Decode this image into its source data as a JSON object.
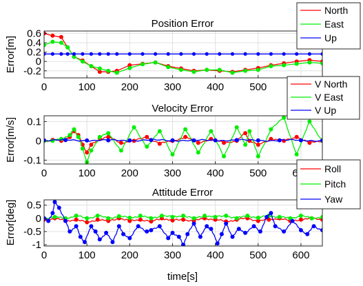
{
  "chart_data": [
    {
      "type": "line",
      "title": "Position Error",
      "ylabel": "Error[m]",
      "xlabel": "",
      "xlim": [
        0,
        650
      ],
      "ylim": [
        -0.35,
        0.65
      ],
      "xticks": [
        0,
        100,
        200,
        300,
        400,
        500
      ],
      "yticks": [
        -0.2,
        0,
        0.2,
        0.4,
        0.6
      ],
      "ytick_labels": [
        "-0.2",
        "0",
        "0.2",
        "0.4",
        "0.6"
      ],
      "grid": true,
      "legend_position": "top-right",
      "series": [
        {
          "name": "North",
          "color": "#ff0000",
          "x": [
            0,
            20,
            40,
            55,
            70,
            90,
            110,
            130,
            150,
            170,
            200,
            230,
            260,
            290,
            320,
            350,
            380,
            410,
            440,
            470,
            500,
            530,
            560,
            590,
            620,
            650
          ],
          "y": [
            0.6,
            0.55,
            0.52,
            0.3,
            0.1,
            0.02,
            -0.1,
            -0.22,
            -0.22,
            -0.2,
            -0.08,
            -0.05,
            -0.02,
            -0.1,
            -0.15,
            -0.2,
            -0.18,
            -0.2,
            -0.22,
            -0.18,
            -0.14,
            -0.08,
            -0.04,
            0.0,
            0.03,
            0.0
          ]
        },
        {
          "name": "East",
          "color": "#00ee00",
          "x": [
            0,
            20,
            40,
            55,
            70,
            90,
            110,
            130,
            150,
            170,
            200,
            230,
            260,
            290,
            320,
            350,
            380,
            410,
            440,
            470,
            500,
            530,
            560,
            590,
            620,
            650
          ],
          "y": [
            0.35,
            0.42,
            0.4,
            0.3,
            0.1,
            0.0,
            -0.1,
            -0.15,
            -0.2,
            -0.24,
            -0.14,
            -0.06,
            -0.02,
            -0.12,
            -0.18,
            -0.22,
            -0.18,
            -0.18,
            -0.24,
            -0.2,
            -0.18,
            -0.1,
            -0.08,
            -0.05,
            -0.02,
            -0.04
          ]
        },
        {
          "name": "Up",
          "color": "#0000ff",
          "x": [
            0,
            20,
            40,
            55,
            70,
            90,
            110,
            130,
            150,
            170,
            200,
            230,
            260,
            290,
            320,
            350,
            380,
            410,
            440,
            470,
            500,
            530,
            560,
            590,
            620,
            650
          ],
          "y": [
            0.16,
            0.16,
            0.16,
            0.16,
            0.16,
            0.16,
            0.16,
            0.16,
            0.16,
            0.16,
            0.16,
            0.16,
            0.16,
            0.16,
            0.16,
            0.16,
            0.16,
            0.16,
            0.16,
            0.16,
            0.16,
            0.16,
            0.16,
            0.16,
            0.16,
            0.16
          ]
        }
      ]
    },
    {
      "type": "line",
      "title": "Velocity Error",
      "ylabel": "Error[m/s]",
      "xlabel": "",
      "xlim": [
        0,
        650
      ],
      "ylim": [
        -0.12,
        0.13
      ],
      "xticks": [
        0,
        100,
        200,
        300,
        400,
        500,
        600
      ],
      "yticks": [
        -0.1,
        0,
        0.1
      ],
      "ytick_labels": [
        "-0.1",
        "0",
        "0.1"
      ],
      "grid": true,
      "legend_position": "top-right",
      "series": [
        {
          "name": "V North",
          "color": "#ff0000",
          "x": [
            0,
            20,
            40,
            60,
            70,
            80,
            90,
            100,
            110,
            130,
            150,
            180,
            210,
            240,
            270,
            300,
            330,
            360,
            390,
            420,
            450,
            470,
            480,
            500,
            530,
            560,
            590,
            620,
            650
          ],
          "y": [
            0,
            0.005,
            0.0,
            0.02,
            0.05,
            0.03,
            -0.02,
            -0.06,
            -0.02,
            0.01,
            0.02,
            -0.01,
            0.0,
            0.02,
            -0.015,
            0.0,
            0.02,
            -0.01,
            0.01,
            -0.01,
            0.0,
            0.04,
            0.0,
            -0.02,
            0.01,
            0.0,
            0.02,
            -0.01,
            0.0
          ]
        },
        {
          "name": "V East",
          "color": "#00ee00",
          "x": [
            0,
            20,
            40,
            60,
            70,
            80,
            90,
            100,
            110,
            130,
            150,
            180,
            210,
            240,
            270,
            300,
            330,
            360,
            390,
            420,
            450,
            470,
            480,
            500,
            530,
            560,
            590,
            620,
            650
          ],
          "y": [
            0,
            0.0,
            0.01,
            0.03,
            0.06,
            0.02,
            -0.04,
            -0.11,
            -0.05,
            0.02,
            0.04,
            -0.05,
            0.07,
            -0.03,
            0.05,
            -0.07,
            0.06,
            -0.06,
            0.05,
            -0.08,
            0.07,
            -0.02,
            0.05,
            -0.08,
            0.06,
            0.12,
            -0.07,
            0.1,
            0.0
          ]
        },
        {
          "name": "V Up",
          "color": "#0000ff",
          "x": [
            0,
            50,
            100,
            150,
            200,
            250,
            300,
            350,
            400,
            450,
            500,
            550,
            600,
            650
          ],
          "y": [
            0.003,
            0.004,
            0.002,
            0.003,
            0.002,
            0.004,
            0.003,
            0.002,
            0.003,
            0.004,
            0.002,
            0.003,
            0.003,
            0.002
          ]
        }
      ]
    },
    {
      "type": "line",
      "title": "Attitude Error",
      "ylabel": "Error[deg]",
      "xlabel": "time[s]",
      "xlim": [
        0,
        650
      ],
      "ylim": [
        -1.05,
        0.7
      ],
      "xticks": [
        0,
        100,
        200,
        300,
        400,
        500,
        600
      ],
      "yticks": [
        -1,
        -0.5,
        0,
        0.5
      ],
      "ytick_labels": [
        "-1",
        "-0.5",
        "0",
        "0.5"
      ],
      "grid": true,
      "legend_position": "top-right",
      "series": [
        {
          "name": "Roll",
          "color": "#ff0000",
          "x": [
            0,
            25,
            50,
            75,
            100,
            125,
            150,
            175,
            200,
            225,
            250,
            275,
            300,
            325,
            350,
            375,
            400,
            425,
            450,
            475,
            500,
            525,
            550,
            575,
            600,
            625,
            650
          ],
          "y": [
            -0.05,
            0.0,
            -0.1,
            -0.05,
            -0.15,
            -0.05,
            -0.1,
            0.0,
            -0.1,
            -0.05,
            -0.12,
            0.0,
            -0.08,
            -0.05,
            -0.1,
            0.0,
            -0.05,
            -0.12,
            -0.05,
            0.0,
            -0.1,
            -0.05,
            0.0,
            -0.1,
            -0.05,
            0.0,
            -0.05
          ]
        },
        {
          "name": "Pitch",
          "color": "#00ee00",
          "x": [
            0,
            25,
            50,
            75,
            100,
            125,
            150,
            175,
            200,
            225,
            250,
            275,
            300,
            325,
            350,
            375,
            400,
            425,
            450,
            475,
            500,
            525,
            550,
            575,
            600,
            625,
            650
          ],
          "y": [
            0.0,
            0.05,
            0.0,
            0.1,
            0.0,
            0.1,
            0.0,
            0.08,
            0.02,
            0.1,
            0.0,
            0.1,
            0.05,
            0.1,
            0.0,
            0.1,
            0.05,
            0.1,
            0.0,
            0.1,
            0.02,
            0.1,
            0.05,
            0.0,
            0.1,
            0.0,
            0.05
          ]
        },
        {
          "name": "Yaw",
          "color": "#0000ff",
          "x": [
            0,
            10,
            20,
            25,
            35,
            50,
            60,
            75,
            85,
            95,
            110,
            120,
            130,
            145,
            160,
            175,
            185,
            200,
            220,
            240,
            250,
            270,
            290,
            300,
            315,
            325,
            335,
            350,
            365,
            380,
            390,
            405,
            415,
            425,
            440,
            455,
            470,
            490,
            505,
            520,
            530,
            540,
            560,
            580,
            600,
            615,
            630,
            650
          ],
          "y": [
            0.0,
            -0.1,
            0.2,
            0.62,
            0.4,
            -0.1,
            -0.5,
            -0.3,
            -0.7,
            -0.9,
            -0.3,
            -0.5,
            -0.8,
            -0.55,
            -0.9,
            -0.3,
            -0.6,
            -0.75,
            -0.3,
            -0.5,
            -0.45,
            -0.3,
            -0.75,
            -0.55,
            -0.7,
            -1.0,
            -0.6,
            -0.2,
            -0.7,
            -0.3,
            -0.4,
            -0.95,
            -0.6,
            -0.2,
            -0.7,
            -0.4,
            -0.55,
            -0.3,
            -0.5,
            0.05,
            0.2,
            -0.3,
            -0.5,
            -0.1,
            -0.45,
            -0.6,
            -0.3,
            -0.45
          ]
        }
      ]
    }
  ]
}
